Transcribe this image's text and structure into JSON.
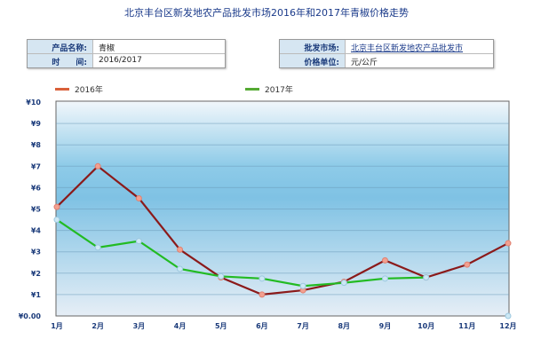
{
  "title": "北京丰台区新发地农产品批发市场2016年和2017年青椒价格走势",
  "info_left": [
    {
      "label": "产品名称:",
      "value": "青椒"
    },
    {
      "label": "时　　间:",
      "value": "2016/2017"
    }
  ],
  "info_right": [
    {
      "label": "批发市场:",
      "value": "北京丰台区新发地农产品批发市"
    },
    {
      "label": "价格单位:",
      "value": "元/公斤"
    }
  ],
  "chart_data": {
    "type": "line",
    "categories": [
      "1月",
      "2月",
      "3月",
      "4月",
      "5月",
      "6月",
      "7月",
      "8月",
      "9月",
      "10月",
      "11月",
      "12月"
    ],
    "y_ticks": [
      "¥0.00",
      "¥1",
      "¥2",
      "¥3",
      "¥4",
      "¥5",
      "¥6",
      "¥7",
      "¥8",
      "¥9",
      "¥10"
    ],
    "ylim": [
      0,
      10
    ],
    "grid": true,
    "legend": "top",
    "series": [
      {
        "name": "2016年",
        "color": "#8b1a1a",
        "legend_color": "#d9603a",
        "values": [
          5.1,
          7.0,
          5.5,
          3.1,
          1.8,
          1.0,
          1.2,
          1.6,
          2.6,
          1.8,
          2.4,
          3.4
        ]
      },
      {
        "name": "2017年",
        "color": "#22bb22",
        "legend_color": "#55aa33",
        "values": [
          4.5,
          3.2,
          3.5,
          2.2,
          1.85,
          1.75,
          1.4,
          1.55,
          1.75,
          1.8,
          null,
          0
        ]
      }
    ]
  }
}
